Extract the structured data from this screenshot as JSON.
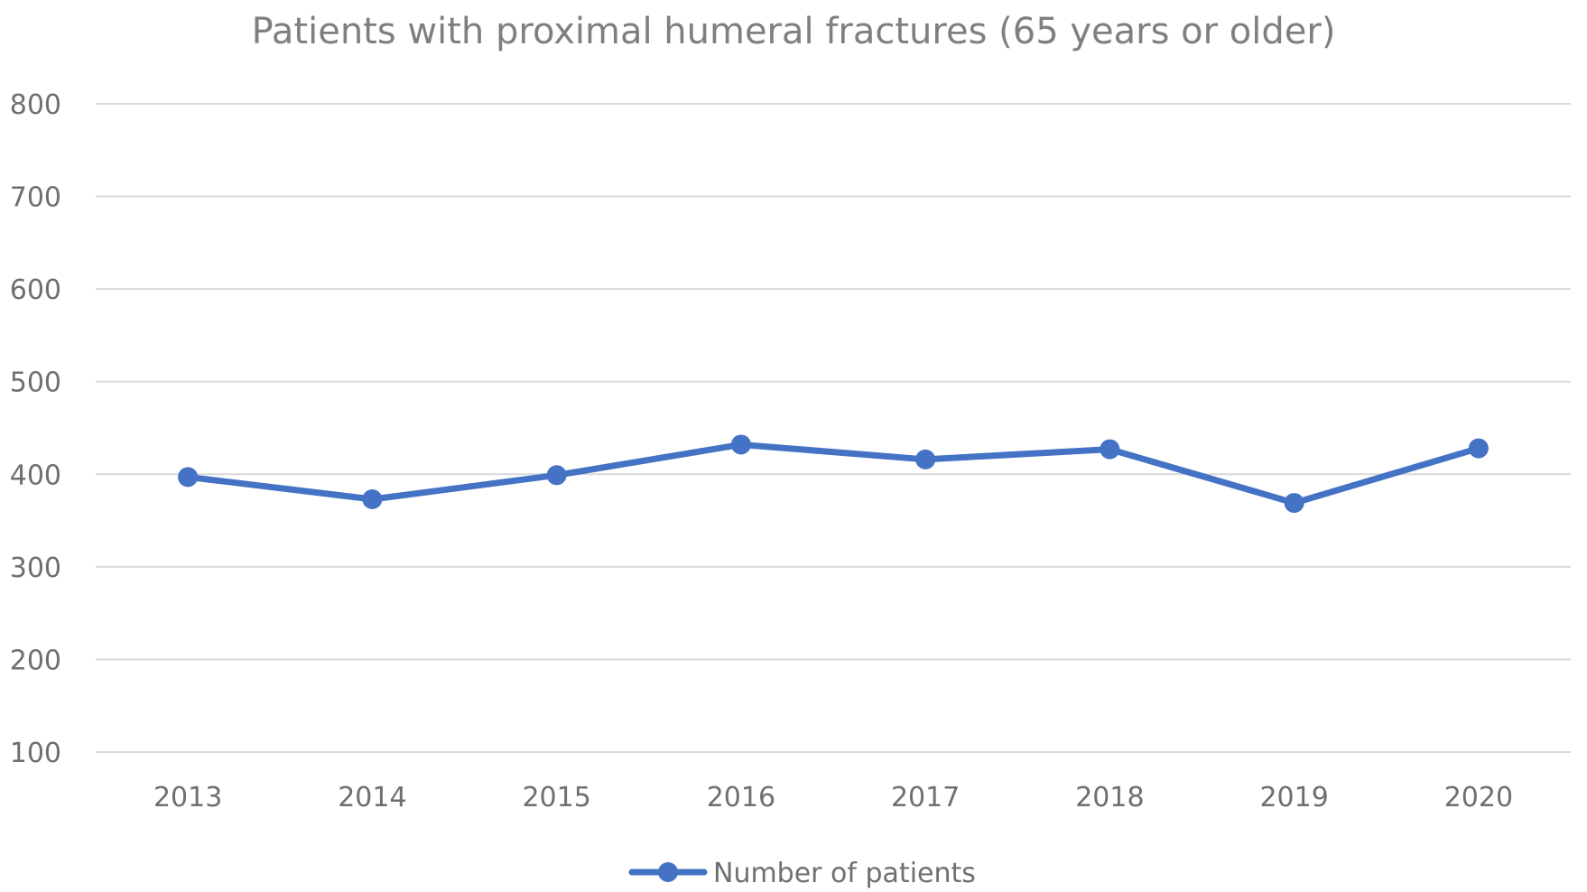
{
  "chart_data": {
    "type": "line",
    "title": "Patients with proximal humeral fractures (65 years or older)",
    "xlabel": "",
    "ylabel": "",
    "categories": [
      "2013",
      "2014",
      "2015",
      "2016",
      "2017",
      "2018",
      "2019",
      "2020"
    ],
    "series": [
      {
        "name": "Number of patients",
        "values": [
          397,
          373,
          399,
          432,
          416,
          427,
          369,
          428
        ],
        "color": "#4472c4"
      }
    ],
    "ylim": [
      100,
      800
    ],
    "yticks": [
      100,
      200,
      300,
      400,
      500,
      600,
      700,
      800
    ],
    "grid": true,
    "legend_position": "bottom",
    "markers": true
  }
}
